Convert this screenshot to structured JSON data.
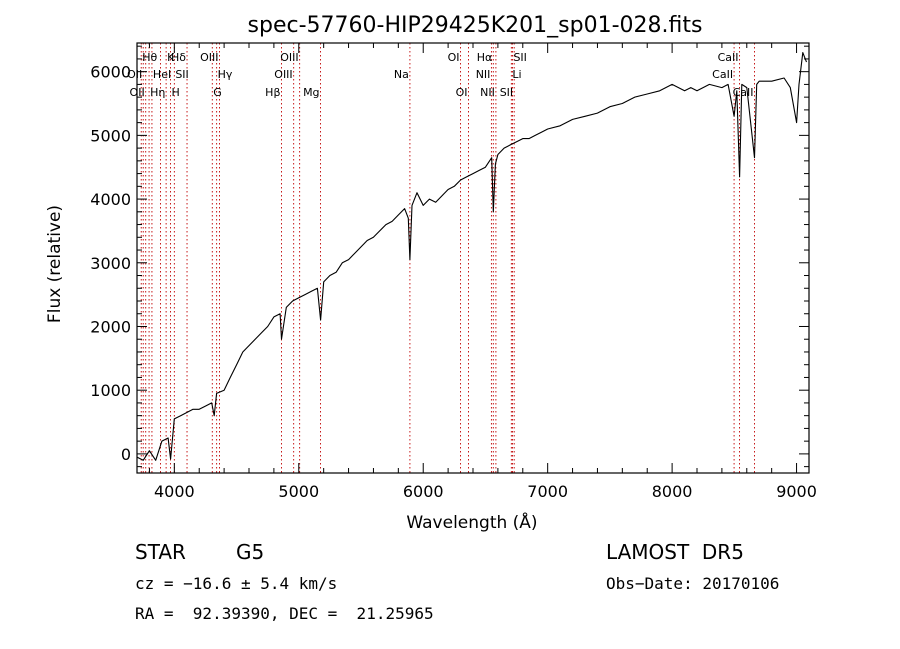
{
  "chart_data": {
    "type": "line",
    "title": "spec-57760-HIP29425K201_sp01-028.fits",
    "xlabel": "Wavelength (Å)",
    "ylabel": "Flux (relative)",
    "xlim": [
      3700,
      9100
    ],
    "ylim": [
      -300,
      6450
    ],
    "xticks": [
      4000,
      5000,
      6000,
      7000,
      8000,
      9000
    ],
    "yticks": [
      0,
      1000,
      2000,
      3000,
      4000,
      5000,
      6000
    ],
    "grid": false,
    "series": [
      {
        "x": [
          3700,
          3750,
          3800,
          3850,
          3900,
          3950,
          3970,
          4000,
          4050,
          4100,
          4150,
          4200,
          4250,
          4300,
          4320,
          4340,
          4400,
          4450,
          4500,
          4550,
          4600,
          4650,
          4700,
          4750,
          4800,
          4850,
          4861,
          4900,
          4950,
          5000,
          5050,
          5100,
          5150,
          5175,
          5200,
          5250,
          5300,
          5350,
          5400,
          5450,
          5500,
          5550,
          5600,
          5650,
          5700,
          5750,
          5800,
          5850,
          5880,
          5893,
          5910,
          5950,
          6000,
          6050,
          6100,
          6150,
          6200,
          6250,
          6300,
          6350,
          6400,
          6450,
          6500,
          6550,
          6563,
          6580,
          6600,
          6650,
          6700,
          6750,
          6800,
          6850,
          6900,
          6950,
          7000,
          7100,
          7200,
          7300,
          7400,
          7500,
          7600,
          7700,
          7800,
          7900,
          8000,
          8100,
          8150,
          8200,
          8300,
          8400,
          8450,
          8498,
          8520,
          8542,
          8560,
          8600,
          8662,
          8680,
          8700,
          8800,
          8900,
          8950,
          9000,
          9020,
          9050,
          9080
        ],
        "y": [
          -50,
          -100,
          50,
          -100,
          200,
          250,
          -80,
          550,
          600,
          650,
          700,
          700,
          750,
          800,
          600,
          950,
          1000,
          1200,
          1400,
          1600,
          1700,
          1800,
          1900,
          2000,
          2150,
          2200,
          1800,
          2300,
          2400,
          2450,
          2500,
          2550,
          2600,
          2100,
          2700,
          2800,
          2850,
          3000,
          3050,
          3150,
          3250,
          3350,
          3400,
          3500,
          3600,
          3650,
          3750,
          3850,
          3700,
          3050,
          3900,
          4100,
          3900,
          4000,
          3950,
          4050,
          4150,
          4200,
          4300,
          4350,
          4400,
          4450,
          4500,
          4650,
          3800,
          4550,
          4700,
          4800,
          4850,
          4900,
          4950,
          4950,
          5000,
          5050,
          5100,
          5150,
          5250,
          5300,
          5350,
          5450,
          5500,
          5600,
          5650,
          5700,
          5800,
          5700,
          5750,
          5700,
          5800,
          5750,
          5800,
          5300,
          5700,
          4350,
          5800,
          5750,
          4650,
          5800,
          5850,
          5850,
          5900,
          5750,
          5200,
          5800,
          6300,
          6150
        ]
      }
    ],
    "lines": [
      {
        "lambda": 3734,
        "label": "Hθ",
        "row": 0,
        "align": "left"
      },
      {
        "lambda": 3750,
        "label": "OII",
        "row": 1,
        "align": "right"
      },
      {
        "lambda": 3770,
        "label": "OII",
        "row": 2,
        "align": "right"
      },
      {
        "lambda": 3797,
        "label": "Hη",
        "row": 2,
        "align": "left"
      },
      {
        "lambda": 3820,
        "label": "HeI",
        "row": 1,
        "align": "left"
      },
      {
        "lambda": 3889,
        "label": "",
        "row": 0,
        "align": "left"
      },
      {
        "lambda": 3934,
        "label": "K",
        "row": 0,
        "align": "left"
      },
      {
        "lambda": 3969,
        "label": "H",
        "row": 2,
        "align": "left"
      },
      {
        "lambda": 4000,
        "label": "SII",
        "row": 1,
        "align": "left"
      },
      {
        "lambda": 4102,
        "label": "Hδ",
        "row": 0,
        "align": "right"
      },
      {
        "lambda": 4305,
        "label": "G",
        "row": 2,
        "align": "left"
      },
      {
        "lambda": 4340,
        "label": "Hγ",
        "row": 1,
        "align": "left"
      },
      {
        "lambda": 4363,
        "label": "OIII",
        "row": 0,
        "align": "right"
      },
      {
        "lambda": 4861,
        "label": "Hβ",
        "row": 2,
        "align": "right"
      },
      {
        "lambda": 4959,
        "label": "OIII",
        "row": 1,
        "align": "right"
      },
      {
        "lambda": 5007,
        "label": "OIII",
        "row": 0,
        "align": "right"
      },
      {
        "lambda": 5175,
        "label": "Mg",
        "row": 2,
        "align": "right"
      },
      {
        "lambda": 5893,
        "label": "Na",
        "row": 1,
        "align": "right"
      },
      {
        "lambda": 6300,
        "label": "OI",
        "row": 0,
        "align": "right"
      },
      {
        "lambda": 6364,
        "label": "OI",
        "row": 2,
        "align": "right"
      },
      {
        "lambda": 6548,
        "label": "NII",
        "row": 1,
        "align": "right"
      },
      {
        "lambda": 6563,
        "label": "Hα",
        "row": 0,
        "align": "right"
      },
      {
        "lambda": 6584,
        "label": "NII",
        "row": 2,
        "align": "right"
      },
      {
        "lambda": 6708,
        "label": "Li",
        "row": 1,
        "align": "left"
      },
      {
        "lambda": 6717,
        "label": "SII",
        "row": 0,
        "align": "left"
      },
      {
        "lambda": 6731,
        "label": "SII",
        "row": 2,
        "align": "right"
      },
      {
        "lambda": 8498,
        "label": "CaII",
        "row": 1,
        "align": "right"
      },
      {
        "lambda": 8542,
        "label": "CaII",
        "row": 0,
        "align": "right"
      },
      {
        "lambda": 8662,
        "label": "CaII",
        "row": 2,
        "align": "right"
      }
    ]
  },
  "info": {
    "object_class": "STAR",
    "subclass": "G5",
    "survey": "LAMOST  DR5",
    "cz": "cz = −16.6 ± 5.4 km/s",
    "obs_date": "Obs−Date: 20170106",
    "coords": "RA =  92.39390, DEC =  21.25965"
  }
}
